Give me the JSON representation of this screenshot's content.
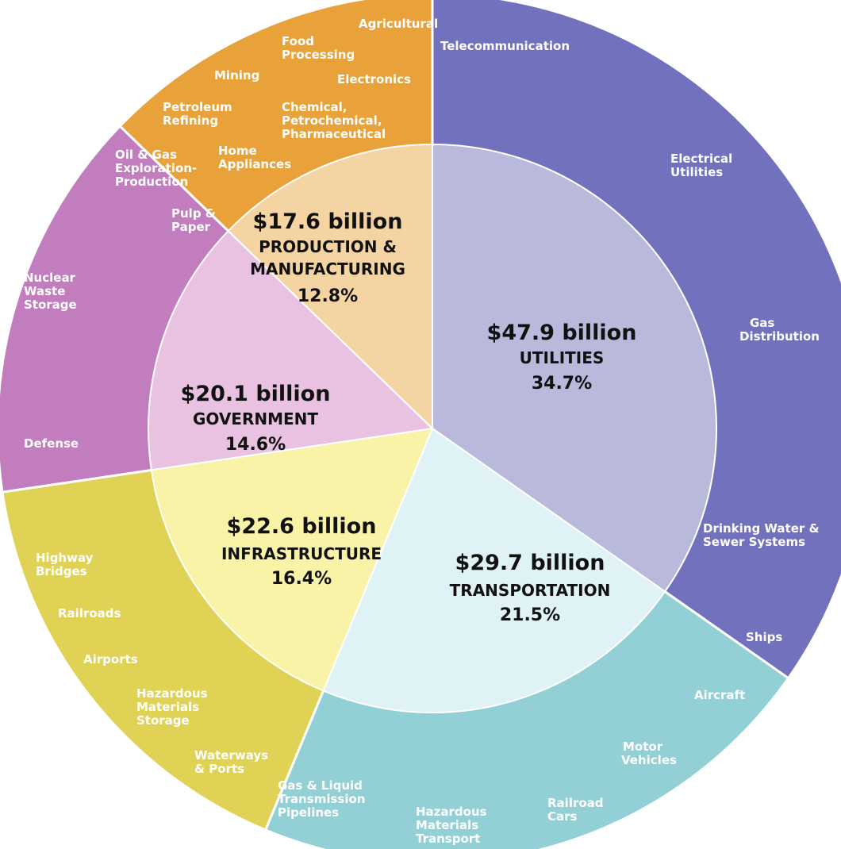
{
  "chart_data": {
    "type": "pie",
    "style": "sunburst (two-ring donut)",
    "inner_ring": [
      {
        "name": "UTILITIES",
        "amount": "$47.9 billion",
        "percent": "34.7%",
        "value": 47.9,
        "color": "#b9b9dc"
      },
      {
        "name": "TRANSPORTATION",
        "amount": "$29.7 billion",
        "percent": "21.5%",
        "value": 29.7,
        "color": "#dff2f5"
      },
      {
        "name": "INFRASTRUCTURE",
        "amount": "$22.6 billion",
        "percent": "16.4%",
        "value": 22.6,
        "color": "#f8f3a6"
      },
      {
        "name": "GOVERNMENT",
        "amount": "$20.1 billion",
        "percent": "14.6%",
        "value": 20.1,
        "color": "#e9c2e2"
      },
      {
        "name": "PRODUCTION & MANUFACTURING",
        "amount": "$17.6 billion",
        "percent": "12.8%",
        "value": 17.6,
        "color": "#f5d4a4"
      }
    ],
    "outer_ring": [
      {
        "sector": "UTILITIES",
        "color": "#7271bd",
        "labels": [
          "Telecommunication",
          "Electrical Utilities",
          "Gas Distribution",
          "Drinking Water & Sewer Systems"
        ]
      },
      {
        "sector": "TRANSPORTATION",
        "color": "#92d0d6",
        "labels": [
          "Ships",
          "Aircraft",
          "Motor Vehicles",
          "Railroad Cars",
          "Hazardous Materials Transport"
        ]
      },
      {
        "sector": "INFRASTRUCTURE",
        "color": "#e0d254",
        "labels": [
          "Highway Bridges",
          "Railroads",
          "Airports",
          "Hazardous Materials Storage",
          "Waterways & Ports",
          "Gas & Liquid Transmission Pipelines"
        ]
      },
      {
        "sector": "GOVERNMENT",
        "color": "#c27dbe",
        "labels": [
          "Nuclear Waste Storage",
          "Defense"
        ]
      },
      {
        "sector": "PRODUCTION & MANUFACTURING",
        "color": "#e8a239",
        "labels": [
          "Agricultural",
          "Food Processing",
          "Mining",
          "Electronics",
          "Petroleum Refining",
          "Chemical, Petrochemical, Pharmaceutical",
          "Oil & Gas Exploration-Production",
          "Home Appliances",
          "Pulp & Paper"
        ]
      }
    ]
  }
}
